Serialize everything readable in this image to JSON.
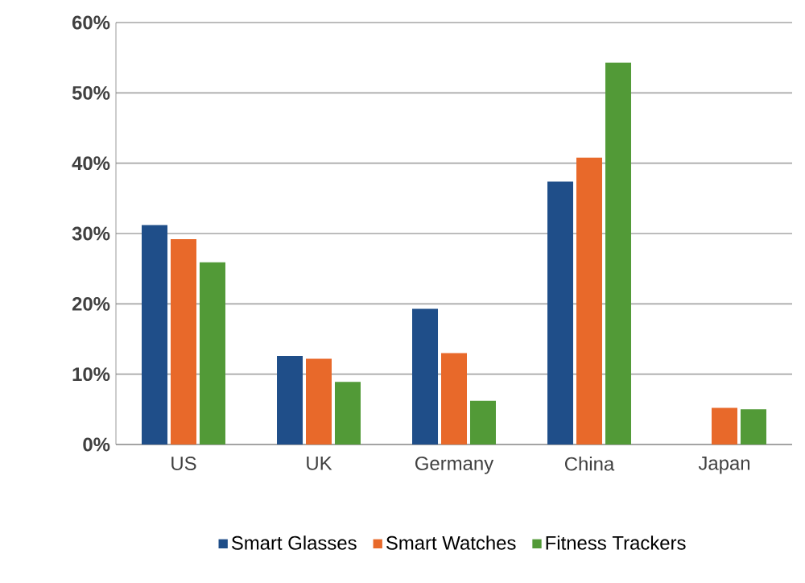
{
  "chart_data": {
    "type": "bar",
    "categories": [
      "US",
      "UK",
      "Germany",
      "China",
      "Japan"
    ],
    "series": [
      {
        "name": "Smart Glasses",
        "color": "#1f4e89",
        "values": [
          31.2,
          12.6,
          19.3,
          37.4,
          0
        ]
      },
      {
        "name": "Smart Watches",
        "color": "#e8692a",
        "values": [
          29.2,
          12.2,
          13.0,
          40.8,
          5.2
        ]
      },
      {
        "name": "Fitness Trackers",
        "color": "#529a37",
        "values": [
          25.9,
          8.9,
          6.2,
          54.3,
          5.0
        ]
      }
    ],
    "ylim": [
      0,
      60
    ],
    "yticks": [
      {
        "value": 0,
        "label": "0%"
      },
      {
        "value": 10,
        "label": "10%"
      },
      {
        "value": 20,
        "label": "20%"
      },
      {
        "value": 30,
        "label": "30%"
      },
      {
        "value": 40,
        "label": "40%"
      },
      {
        "value": 50,
        "label": "50%"
      },
      {
        "value": 60,
        "label": "60%"
      }
    ],
    "grid": "y",
    "legend": "bottom"
  }
}
